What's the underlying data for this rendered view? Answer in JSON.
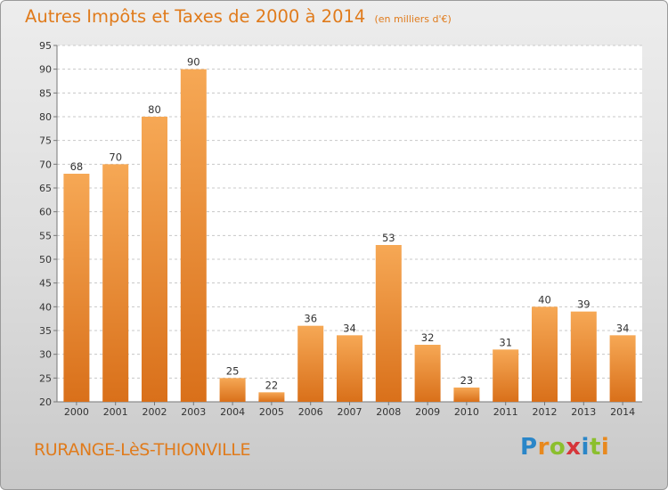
{
  "chart_data": {
    "type": "bar",
    "title": "Autres Impôts et Taxes de 2000 à 2014",
    "unit": "(en milliers d'€)",
    "categories": [
      "2000",
      "2001",
      "2002",
      "2003",
      "2004",
      "2005",
      "2006",
      "2007",
      "2008",
      "2009",
      "2010",
      "2011",
      "2012",
      "2013",
      "2014"
    ],
    "values": [
      68,
      70,
      80,
      90,
      25,
      22,
      36,
      34,
      53,
      32,
      23,
      31,
      40,
      39,
      34
    ],
    "ylim": [
      20,
      95
    ],
    "yticks": [
      20,
      25,
      30,
      35,
      40,
      45,
      50,
      55,
      60,
      65,
      70,
      75,
      80,
      85,
      90,
      95
    ],
    "grid": "horizontal dashed",
    "bar_color_top": "#f6a855",
    "bar_color_bottom": "#d9701a"
  },
  "footer": {
    "town": "RURANGE-LèS-THIONVILLE",
    "logo_letters": [
      "P",
      "r",
      "o",
      "x",
      "i",
      "t",
      "i"
    ],
    "logo_colors": [
      "#2a86c8",
      "#e8891e",
      "#8bbf2e",
      "#d6363a",
      "#2a86c8",
      "#8bbf2e",
      "#e8891e"
    ]
  }
}
